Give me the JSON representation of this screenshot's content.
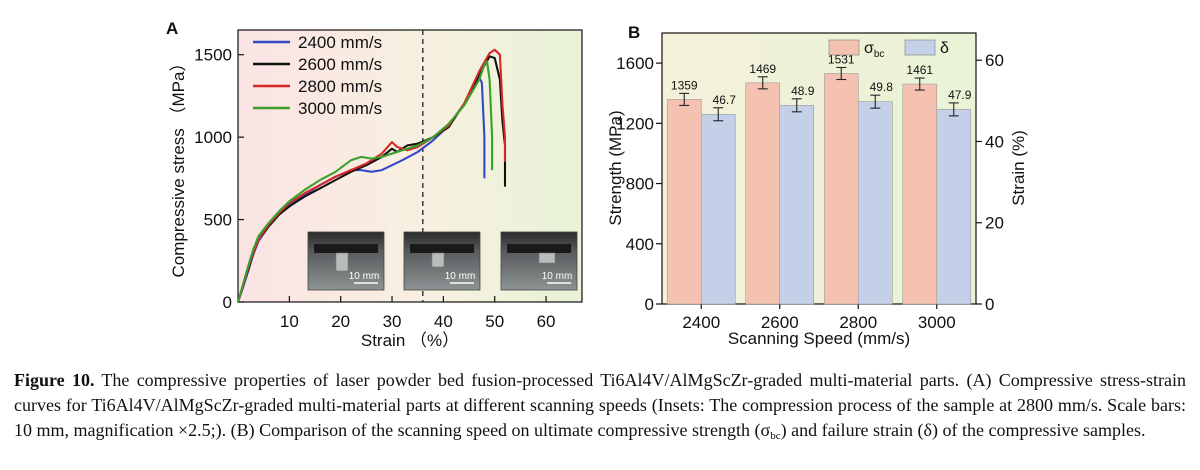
{
  "figure": {
    "panel_a_label": "A",
    "panel_b_label": "B",
    "caption": {
      "label": "Figure 10.",
      "part1": "The compressive properties of laser powder bed fusion-processed Ti6Al4V/AlMgScZr-graded multi-material parts. (A) Compressive stress-strain curves for Ti6Al4V/AlMgScZr-graded multi-material parts at different scanning speeds (Insets: The compression process of the sample at 2800 mm/s. Scale bars: 10 mm, magnification ×2.5;). (B) Comparison of the scanning speed on ultimate compressive strength (σ",
      "sub": "bc",
      "part2": ") and failure strain (δ) of the compressive samples."
    }
  },
  "chart_data": [
    {
      "type": "line",
      "panel": "A",
      "title": "",
      "xlabel": "Strain （%）",
      "ylabel": "Compressive stress （MPa）",
      "xlim": [
        0,
        67
      ],
      "ylim": [
        0,
        1650
      ],
      "xticks": [
        10,
        20,
        30,
        40,
        50,
        60
      ],
      "yticks": [
        0,
        500,
        1000,
        1500
      ],
      "xtick_labels": [
        "10",
        "20",
        "30",
        "40",
        "50",
        "60"
      ],
      "ytick_labels": [
        "0",
        "500",
        "1000",
        "1500"
      ],
      "dashed_vline_x": 36,
      "background": "gradient pink (left) to light green (right)",
      "legend_position": "top-left",
      "series": [
        {
          "name": "2400 mm/s",
          "color": "#3548c9",
          "x": [
            0,
            1,
            2,
            3,
            4,
            6,
            8,
            10,
            13,
            16,
            19,
            22,
            24,
            26,
            28,
            30,
            32,
            35,
            38,
            41,
            44,
            46,
            47,
            47.5,
            48,
            48
          ],
          "y": [
            0,
            90,
            190,
            290,
            370,
            460,
            530,
            590,
            650,
            710,
            760,
            800,
            800,
            790,
            800,
            830,
            860,
            910,
            980,
            1070,
            1200,
            1320,
            1360,
            1330,
            1000,
            750
          ]
        },
        {
          "name": "2600 mm/s",
          "color": "#111111",
          "x": [
            0,
            1,
            2,
            3,
            4,
            6,
            8,
            10,
            13,
            16,
            19,
            22,
            25,
            28,
            30,
            31,
            33,
            35,
            38,
            41,
            44,
            47,
            49,
            50,
            51,
            51.5,
            52,
            52
          ],
          "y": [
            0,
            100,
            200,
            300,
            380,
            460,
            530,
            580,
            640,
            690,
            740,
            790,
            830,
            880,
            930,
            910,
            950,
            960,
            1000,
            1060,
            1200,
            1380,
            1490,
            1480,
            1350,
            1100,
            950,
            700
          ]
        },
        {
          "name": "2800 mm/s",
          "color": "#d62728",
          "x": [
            0,
            1,
            2,
            3,
            4,
            6,
            8,
            10,
            13,
            16,
            19,
            22,
            25,
            28,
            30,
            31,
            33,
            35,
            38,
            41,
            44,
            47,
            49,
            50,
            51,
            51.5,
            52,
            52
          ],
          "y": [
            0,
            100,
            210,
            300,
            380,
            470,
            540,
            600,
            660,
            710,
            760,
            800,
            840,
            900,
            970,
            940,
            920,
            940,
            1000,
            1070,
            1200,
            1400,
            1510,
            1530,
            1500,
            1200,
            1000,
            850
          ]
        },
        {
          "name": "3000 mm/s",
          "color": "#3aa02c",
          "x": [
            0,
            1,
            2,
            3,
            4,
            6,
            8,
            10,
            13,
            16,
            19,
            22,
            24,
            26,
            28,
            30,
            32,
            35,
            38,
            41,
            44,
            47,
            48,
            48.5,
            49,
            49.5,
            49.5
          ],
          "y": [
            0,
            110,
            220,
            320,
            400,
            480,
            550,
            610,
            680,
            740,
            790,
            860,
            880,
            870,
            880,
            900,
            920,
            950,
            1000,
            1080,
            1190,
            1350,
            1440,
            1460,
            1350,
            1000,
            800
          ]
        }
      ],
      "insets": [
        {
          "scale_label": "10 mm"
        },
        {
          "scale_label": "10 mm"
        },
        {
          "scale_label": "10 mm"
        }
      ]
    },
    {
      "type": "bar",
      "panel": "B",
      "title": "",
      "xlabel": "Scanning Speed (mm/s)",
      "ylabel": "Strength (MPa)",
      "y2label": "Strain (%)",
      "categories": [
        "2400",
        "2600",
        "2800",
        "3000"
      ],
      "ylim": [
        0,
        1800
      ],
      "y2lim": [
        0,
        66.7
      ],
      "yticks": [
        0,
        400,
        800,
        1200,
        1600
      ],
      "y2ticks": [
        0,
        20,
        40,
        60
      ],
      "ytick_labels": [
        "0",
        "400",
        "800",
        "1200",
        "1600"
      ],
      "y2tick_labels": [
        "0",
        "20",
        "40",
        "60"
      ],
      "legend_position": "top-right",
      "series": [
        {
          "name": "σbc",
          "name_main": "σ",
          "name_sub": "bc",
          "axis": "left",
          "color": "#f5c2b2",
          "values": [
            1359,
            1469,
            1531,
            1461
          ],
          "errors": [
            40,
            40,
            40,
            40
          ],
          "labels": [
            "1359",
            "1469",
            "1531",
            "1461"
          ]
        },
        {
          "name": "δ",
          "name_main": "δ",
          "name_sub": "",
          "axis": "right",
          "color": "#c4d0e8",
          "values": [
            46.7,
            48.9,
            49.8,
            47.9
          ],
          "errors": [
            1.6,
            1.6,
            1.6,
            1.6
          ],
          "labels": [
            "46.7",
            "48.9",
            "49.8",
            "47.9"
          ]
        }
      ]
    }
  ]
}
